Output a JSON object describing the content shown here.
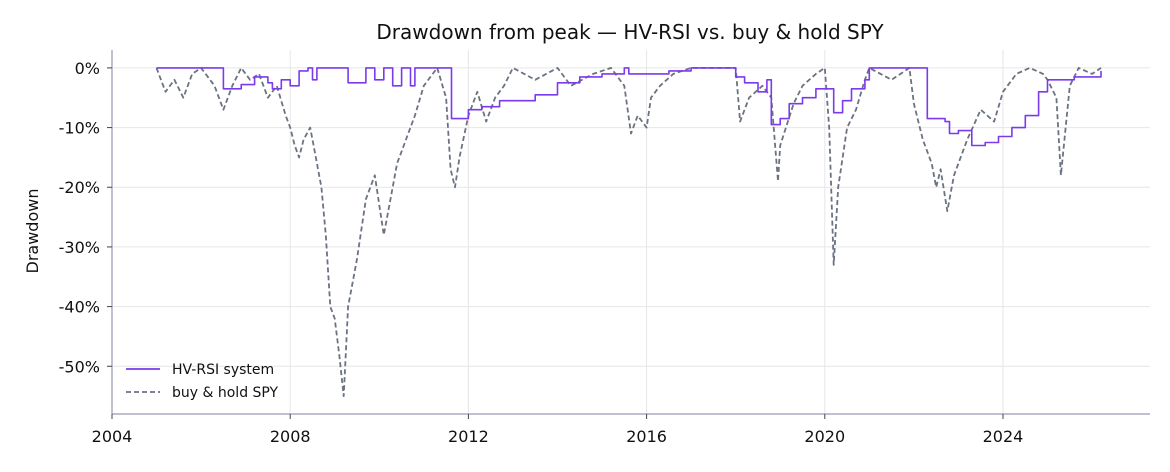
{
  "chart_data": {
    "type": "line",
    "title": "Drawdown from peak — HV-RSI vs. buy & hold SPY",
    "xlabel": "",
    "ylabel": "Drawdown",
    "xlim": [
      2004.0,
      2027.3
    ],
    "ylim": [
      -58,
      3
    ],
    "x_ticks": [
      2004,
      2008,
      2012,
      2016,
      2020,
      2024
    ],
    "x_tick_labels": [
      "2004",
      "2008",
      "2012",
      "2016",
      "2020",
      "2024"
    ],
    "y_ticks": [
      0,
      -10,
      -20,
      -30,
      -40,
      -50
    ],
    "y_tick_labels": [
      "0%",
      "-10%",
      "-20%",
      "-30%",
      "-40%",
      "-50%"
    ],
    "grid": true,
    "legend_position": "lower-left",
    "series": [
      {
        "name": "HV-RSI system",
        "color": "#7c3aed",
        "style": "solid",
        "x": [
          2005.0,
          2005.5,
          2006.0,
          2006.4,
          2006.5,
          2006.9,
          2007.2,
          2007.5,
          2007.6,
          2007.8,
          2008.0,
          2008.2,
          2008.4,
          2008.5,
          2008.6,
          2008.9,
          2009.0,
          2009.3,
          2009.5,
          2009.7,
          2009.9,
          2010.1,
          2010.3,
          2010.5,
          2010.7,
          2010.8,
          2011.0,
          2011.3,
          2011.6,
          2011.62,
          2012.0,
          2012.3,
          2012.7,
          2013.0,
          2013.5,
          2014.0,
          2014.5,
          2015.0,
          2015.5,
          2015.6,
          2016.0,
          2016.5,
          2017.0,
          2017.5,
          2017.9,
          2018.0,
          2018.2,
          2018.5,
          2018.7,
          2018.8,
          2019.0,
          2019.2,
          2019.5,
          2019.8,
          2020.0,
          2020.2,
          2020.4,
          2020.6,
          2020.9,
          2021.0,
          2021.5,
          2022.0,
          2022.3,
          2022.4,
          2022.7,
          2022.8,
          2023.0,
          2023.3,
          2023.6,
          2023.9,
          2024.2,
          2024.5,
          2024.8,
          2025.0,
          2025.3,
          2025.6,
          2025.9,
          2026.2
        ],
        "y": [
          0,
          0,
          0,
          0,
          -3.5,
          -2.8,
          -1.5,
          -2.5,
          -3.5,
          -2.0,
          -3.0,
          -0.5,
          0,
          -2.0,
          0,
          0,
          0,
          -2.5,
          -2.5,
          0,
          -2.0,
          0,
          -3.0,
          0,
          -3.0,
          0,
          0,
          0,
          0,
          -8.5,
          -7.0,
          -6.5,
          -5.5,
          -5.5,
          -4.5,
          -2.5,
          -1.5,
          -1.0,
          0,
          -1.0,
          -1.0,
          -0.5,
          0,
          0,
          0,
          -1.5,
          -2.5,
          -4.0,
          -2.0,
          -9.5,
          -8.5,
          -6.0,
          -5.0,
          -3.5,
          -3.5,
          -7.5,
          -5.5,
          -3.5,
          -2.0,
          0,
          0,
          0,
          -8.5,
          -8.5,
          -9.0,
          -11.0,
          -10.5,
          -13.0,
          -12.5,
          -11.5,
          -10.0,
          -8.0,
          -4.0,
          -2.0,
          -2.0,
          -1.5,
          -1.5,
          -0.5
        ]
      },
      {
        "name": "buy & hold SPY",
        "color": "#6b7280",
        "style": "dashed",
        "x": [
          2005.0,
          2005.2,
          2005.4,
          2005.6,
          2005.8,
          2006.0,
          2006.3,
          2006.5,
          2006.7,
          2006.9,
          2007.1,
          2007.3,
          2007.5,
          2007.7,
          2007.9,
          2008.0,
          2008.1,
          2008.2,
          2008.3,
          2008.45,
          2008.55,
          2008.7,
          2008.8,
          2008.9,
          2009.0,
          2009.1,
          2009.2,
          2009.3,
          2009.4,
          2009.5,
          2009.7,
          2009.9,
          2010.1,
          2010.3,
          2010.4,
          2010.5,
          2010.6,
          2010.8,
          2011.0,
          2011.3,
          2011.5,
          2011.6,
          2011.7,
          2011.8,
          2012.0,
          2012.2,
          2012.4,
          2012.6,
          2012.8,
          2013.0,
          2013.5,
          2014.0,
          2014.3,
          2014.8,
          2015.2,
          2015.5,
          2015.65,
          2015.8,
          2016.0,
          2016.1,
          2016.3,
          2016.6,
          2017.0,
          2017.5,
          2018.0,
          2018.1,
          2018.3,
          2018.6,
          2018.8,
          2018.95,
          2019.0,
          2019.3,
          2019.5,
          2019.8,
          2020.0,
          2020.1,
          2020.2,
          2020.3,
          2020.5,
          2020.7,
          2020.9,
          2021.0,
          2021.5,
          2021.9,
          2022.0,
          2022.2,
          2022.4,
          2022.5,
          2022.6,
          2022.75,
          2022.9,
          2023.0,
          2023.2,
          2023.5,
          2023.8,
          2024.0,
          2024.3,
          2024.6,
          2024.9,
          2025.0,
          2025.2,
          2025.3,
          2025.5,
          2025.7,
          2026.0,
          2026.2
        ],
        "y": [
          0,
          -4,
          -2,
          -5,
          -1,
          0,
          -3,
          -7,
          -3,
          0,
          -2,
          -1,
          -5,
          -3,
          -8,
          -10,
          -13,
          -15,
          -12,
          -10,
          -14,
          -20,
          -28,
          -40,
          -42,
          -48,
          -55,
          -40,
          -36,
          -32,
          -22,
          -18,
          -28,
          -20,
          -16,
          -14,
          -12,
          -8,
          -3,
          0,
          -5,
          -17,
          -20,
          -15,
          -8,
          -4,
          -9,
          -5,
          -3,
          0,
          -2,
          0,
          -3,
          -1,
          0,
          -3,
          -11,
          -8,
          -10,
          -5,
          -3,
          -1,
          0,
          0,
          0,
          -9,
          -5,
          -3,
          -5,
          -19,
          -13,
          -6,
          -3,
          -1,
          0,
          -10,
          -33,
          -20,
          -10,
          -7,
          -2,
          0,
          -2,
          0,
          -6,
          -12,
          -16,
          -20,
          -17,
          -24,
          -18,
          -16,
          -12,
          -7,
          -9,
          -4,
          -1,
          0,
          -1,
          -2,
          -5,
          -18,
          -3,
          0,
          -1,
          0
        ]
      }
    ]
  }
}
